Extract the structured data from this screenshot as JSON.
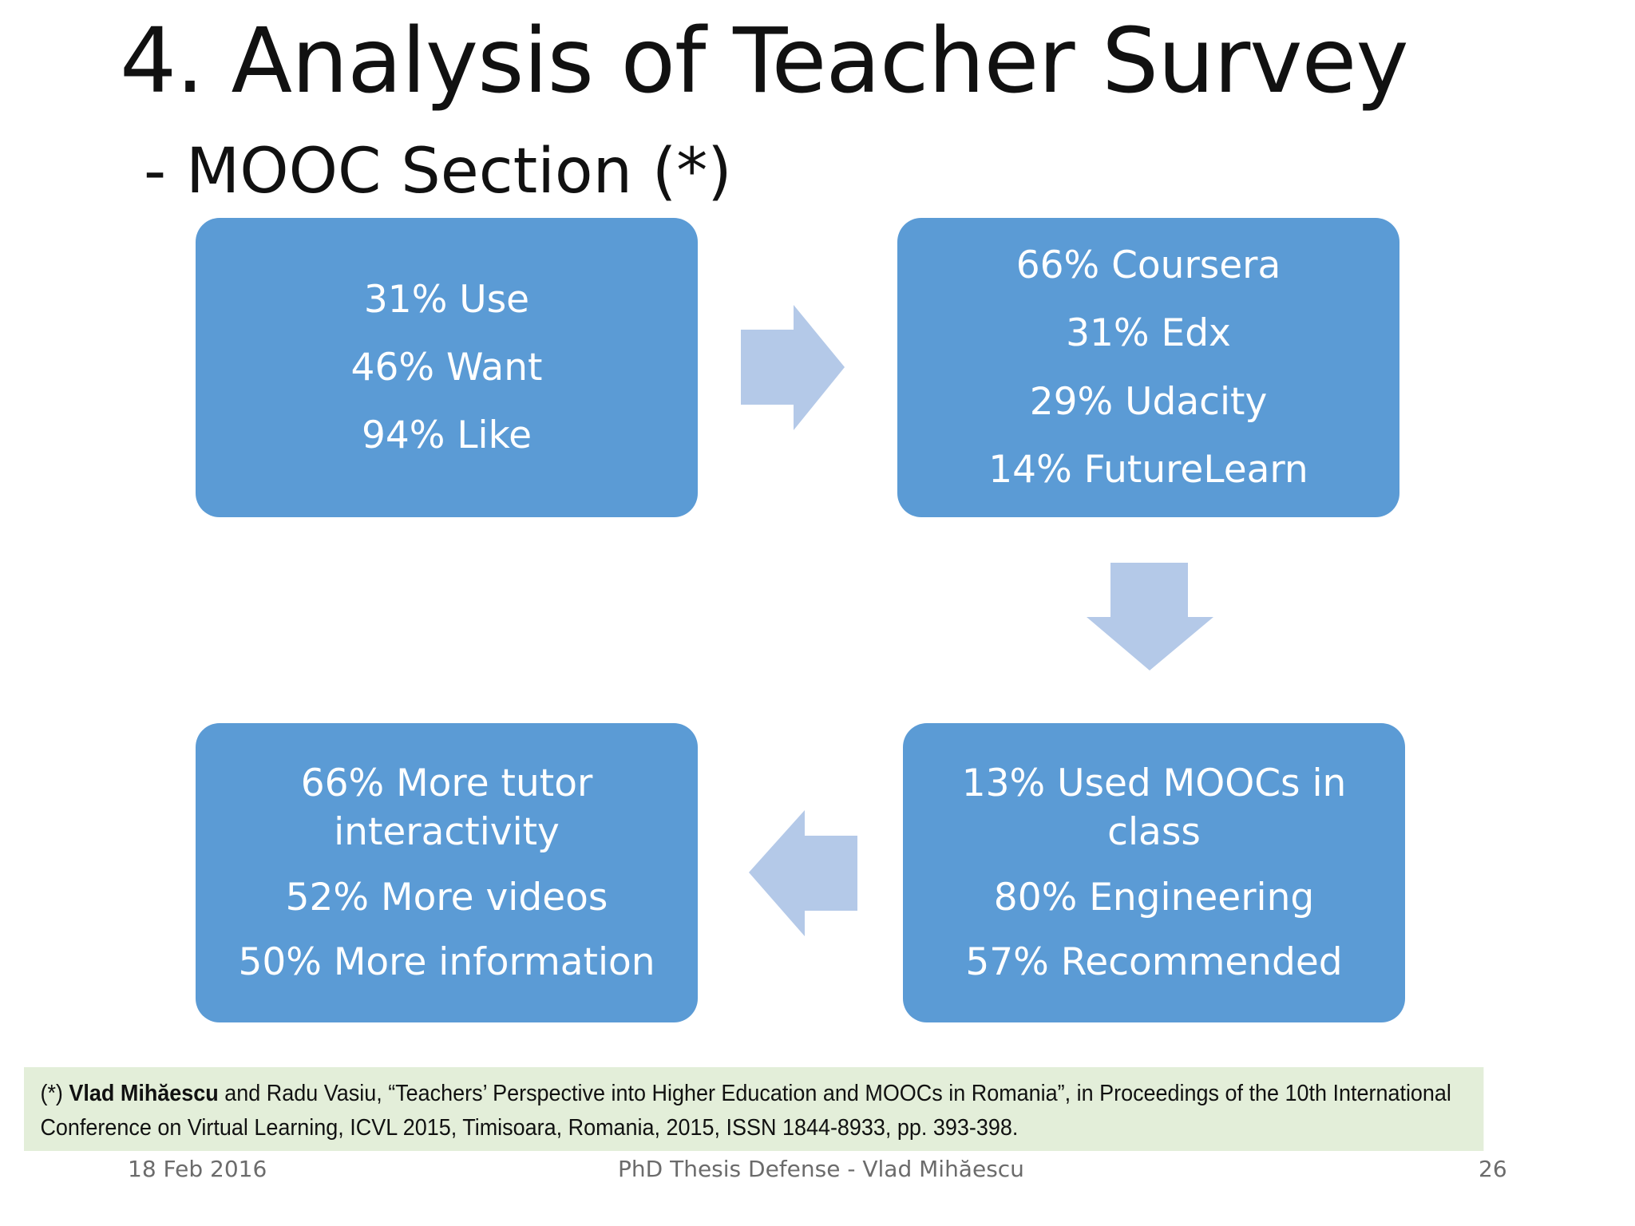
{
  "slide": {
    "title": "4. Analysis of Teacher Survey",
    "subtitle": "- MOOC Section (*)"
  },
  "boxes": [
    {
      "lines": [
        "31% Use",
        "46% Want",
        "94% Like"
      ]
    },
    {
      "lines": [
        "66% Coursera",
        "31% Edx",
        "29% Udacity",
        "14% FutureLearn"
      ]
    },
    {
      "lines": [
        "13% Used MOOCs in class",
        "80% Engineering",
        "57% Recommended"
      ]
    },
    {
      "lines": [
        "66% More tutor interactivity",
        "52% More videos",
        "50% More information"
      ]
    }
  ],
  "reference": {
    "marker": "(*)",
    "author_bold": "Vlad Mihăescu",
    "text": "and Radu Vasiu, “Teachers’ Perspective into Higher Education and MOOCs in Romania”, in Proceedings of the 10th International Conference on Virtual Learning, ICVL 2015, Timisoara, Romania, 2015, ISSN 1844-8933, pp. 393-398."
  },
  "footer": {
    "date": "18 Feb 2016",
    "center": "PhD Thesis Defense - Vlad Mihăescu",
    "page": "26"
  },
  "colors": {
    "box_fill": "#5b9bd5",
    "arrow_fill": "#b4c9e8",
    "reference_bg": "#e3eed9"
  }
}
